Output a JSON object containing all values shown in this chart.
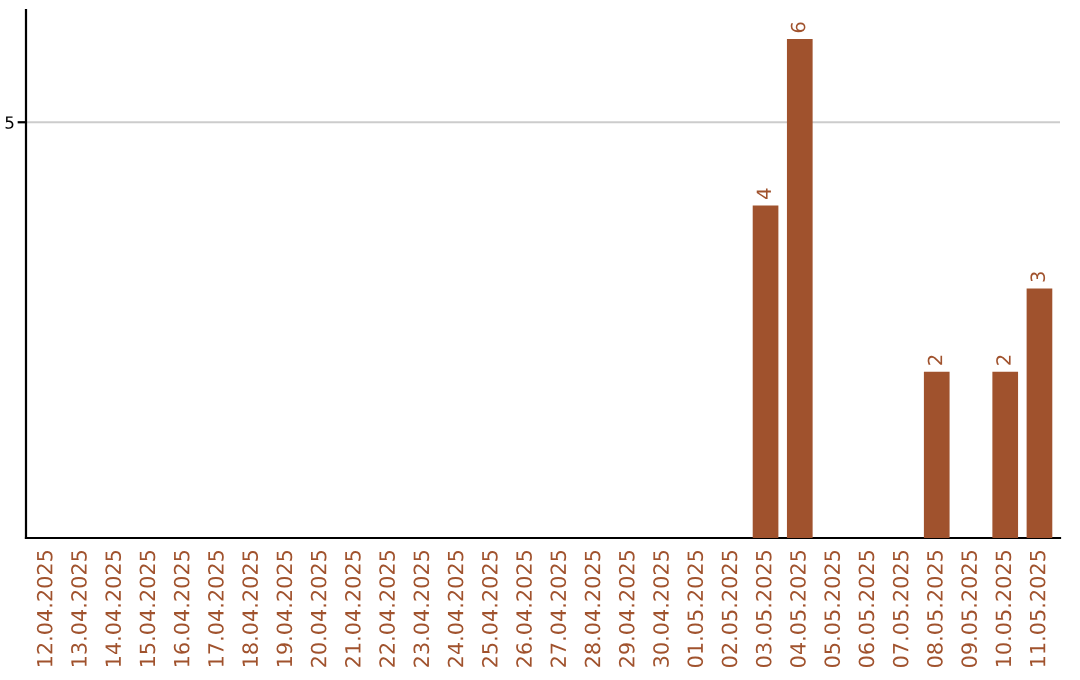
{
  "chart_data": {
    "type": "bar",
    "categories": [
      "12.04.2025",
      "13.04.2025",
      "14.04.2025",
      "15.04.2025",
      "16.04.2025",
      "17.04.2025",
      "18.04.2025",
      "19.04.2025",
      "20.04.2025",
      "21.04.2025",
      "22.04.2025",
      "23.04.2025",
      "24.04.2025",
      "25.04.2025",
      "26.04.2025",
      "27.04.2025",
      "28.04.2025",
      "29.04.2025",
      "30.04.2025",
      "01.05.2025",
      "02.05.2025",
      "03.05.2025",
      "04.05.2025",
      "05.05.2025",
      "06.05.2025",
      "07.05.2025",
      "08.05.2025",
      "09.05.2025",
      "10.05.2025",
      "11.05.2025"
    ],
    "values": [
      null,
      null,
      null,
      null,
      null,
      null,
      null,
      null,
      null,
      null,
      null,
      null,
      null,
      null,
      null,
      null,
      null,
      null,
      null,
      null,
      null,
      4,
      6,
      null,
      null,
      null,
      2,
      null,
      2,
      3
    ],
    "data_labels": true,
    "color": "#a0522d",
    "ylim": [
      0,
      6.35
    ],
    "yticks": [
      5
    ],
    "grid": "y"
  }
}
